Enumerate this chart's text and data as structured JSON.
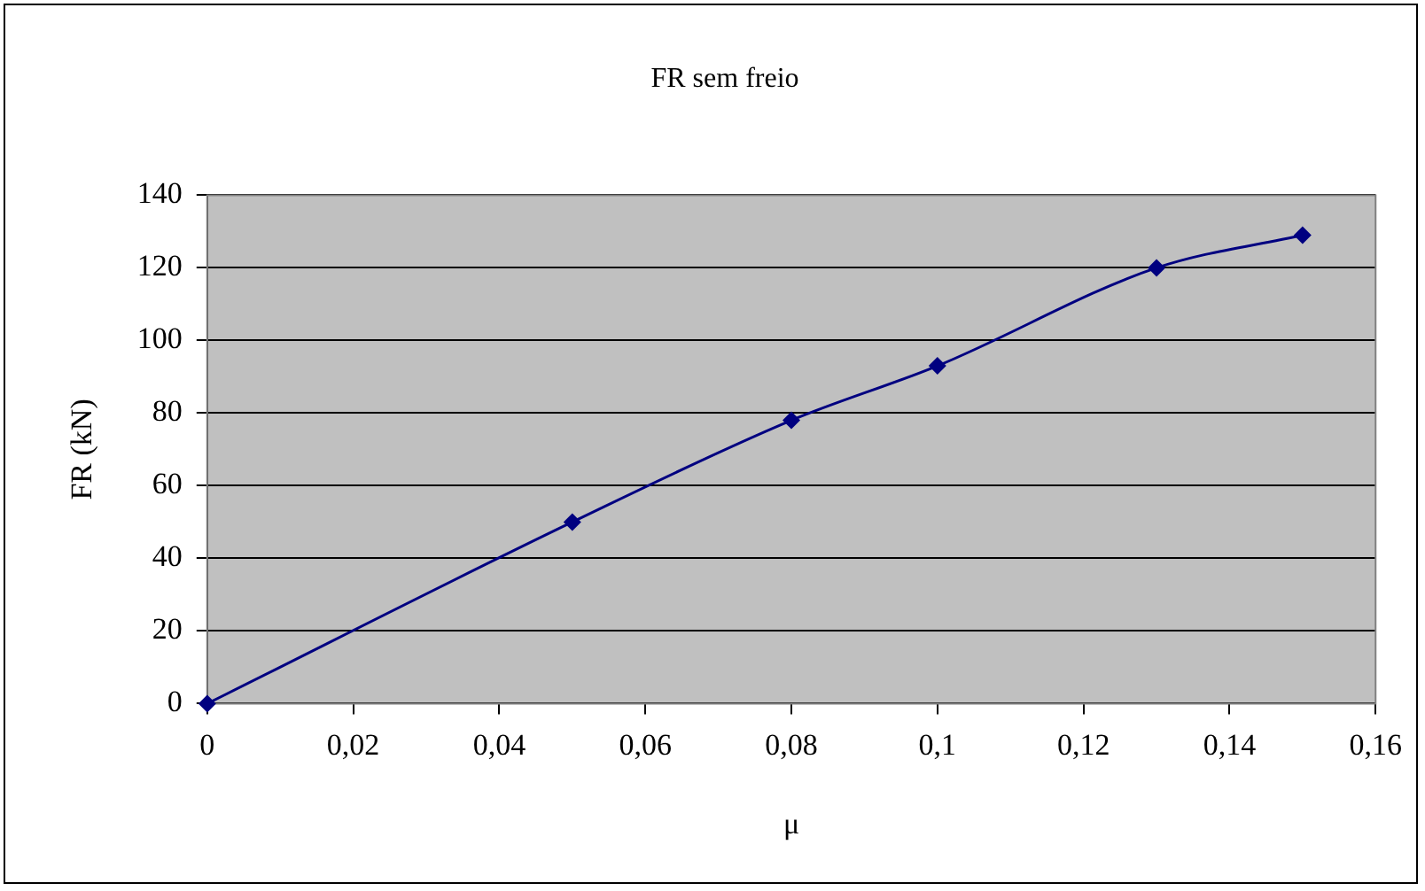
{
  "chart_data": {
    "type": "line",
    "title": "FR sem freio",
    "xlabel": "μ",
    "ylabel": "FR (kN)",
    "x": [
      0,
      0.05,
      0.08,
      0.1,
      0.13,
      0.15
    ],
    "series": [
      {
        "color": "#000080",
        "values": [
          0,
          50,
          78,
          93,
          120,
          129
        ]
      }
    ],
    "xlim": [
      0,
      0.16
    ],
    "xticks": [
      0,
      {
        "value": 0.02,
        "label": "0,02"
      },
      {
        "value": 0.04,
        "label": "0,04"
      },
      {
        "value": 0.06,
        "label": "0,06"
      },
      {
        "value": 0.08,
        "label": "0,08"
      },
      {
        "value": 0.1,
        "label": "0,1"
      },
      {
        "value": 0.12,
        "label": "0,12"
      },
      {
        "value": 0.14,
        "label": "0,14"
      },
      {
        "value": 0.16,
        "label": "0,16"
      }
    ],
    "ylim": [
      0,
      140
    ],
    "yticks": [
      0,
      20,
      40,
      60,
      80,
      100,
      120,
      140
    ],
    "grid": "y",
    "legend": false,
    "marker": "diamond",
    "line_style": "solid"
  }
}
